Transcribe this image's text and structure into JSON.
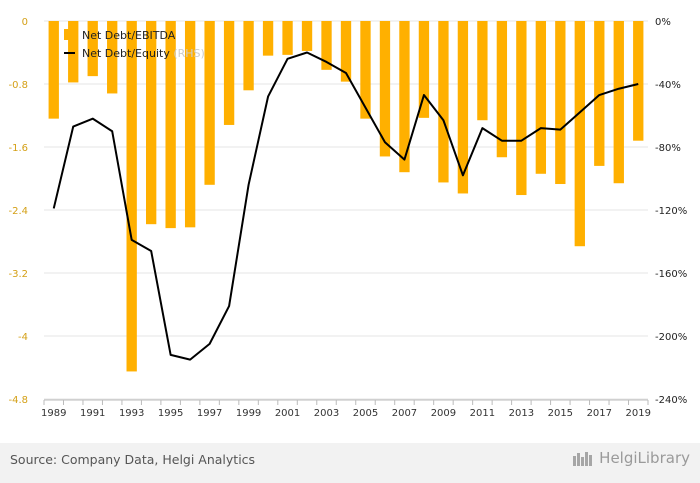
{
  "chart_data": {
    "type": "bar+line",
    "categories": [
      "1989",
      "1990",
      "1991",
      "1992",
      "1993",
      "1994",
      "1995",
      "1996",
      "1997",
      "1998",
      "1999",
      "2000",
      "2001",
      "2002",
      "2003",
      "2004",
      "2005",
      "2006",
      "2007",
      "2008",
      "2009",
      "2010",
      "2011",
      "2012",
      "2013",
      "2014",
      "2015",
      "2016",
      "2017",
      "2018",
      "2019"
    ],
    "x_tick_labels": [
      "1989",
      "1991",
      "1993",
      "1995",
      "1997",
      "1999",
      "2001",
      "2003",
      "2005",
      "2007",
      "2009",
      "2011",
      "2013",
      "2015",
      "2017",
      "2019"
    ],
    "series": [
      {
        "name": "Net Debt/EBITDA",
        "type": "bar",
        "axis": "left",
        "color": "#ffb000",
        "values": [
          -1.24,
          -0.78,
          -0.7,
          -0.92,
          -4.45,
          -2.58,
          -2.63,
          -2.62,
          -2.08,
          -1.32,
          -0.88,
          -0.44,
          -0.43,
          -0.38,
          -0.62,
          -0.77,
          -1.24,
          -1.72,
          -1.92,
          -1.23,
          -2.05,
          -2.19,
          -1.26,
          -1.73,
          -2.21,
          -1.94,
          -2.07,
          -2.86,
          -1.84,
          -2.06,
          -1.52
        ]
      },
      {
        "name": "Net Debt/Equity",
        "legend_suffix": "(RHS)",
        "type": "line",
        "axis": "right",
        "color": "#000000",
        "values": [
          -119,
          -67,
          -62,
          -70,
          -139,
          -146,
          -212,
          -215,
          -205,
          -181,
          -104,
          -48,
          -24,
          -20,
          -26,
          -33,
          -55,
          -77,
          -88,
          -47,
          -63,
          -98,
          -68,
          -76,
          -76,
          -68,
          -69,
          -58,
          -47,
          -43,
          -40
        ]
      }
    ],
    "left_axis": {
      "ticks": [
        "0",
        "-0.8",
        "-1.6",
        "-2.4",
        "-3.2",
        "-4",
        "-4.8"
      ],
      "ylim": [
        -4.8,
        0
      ]
    },
    "right_axis": {
      "ticks": [
        "0%",
        "-40%",
        "-80%",
        "-120%",
        "-160%",
        "-200%",
        "-240%"
      ],
      "ylim": [
        -240,
        0
      ]
    },
    "legend_position": "top-left",
    "grid": true
  },
  "footer": {
    "source": "Source: Company Data, Helgi Analytics",
    "logo": "HelgiLibrary"
  }
}
